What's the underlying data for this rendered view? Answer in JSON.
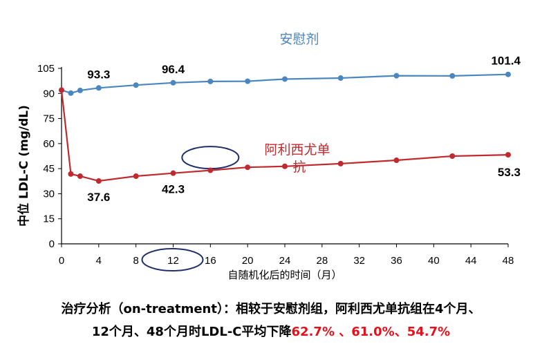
{
  "chart_data": {
    "type": "line",
    "title": "",
    "xlabel": "自随机化后的时间（月）",
    "ylabel": "中位 LDL-C (mg/dL)",
    "xlim": [
      0,
      48
    ],
    "ylim": [
      0,
      105
    ],
    "x_ticks": [
      0,
      4,
      8,
      12,
      16,
      20,
      24,
      28,
      32,
      36,
      40,
      44,
      48
    ],
    "y_ticks": [
      0,
      15,
      30,
      45,
      60,
      75,
      90,
      105
    ],
    "grid": false,
    "series": [
      {
        "name": "安慰剂",
        "color": "#4a86c0",
        "x": [
          0,
          1,
          2,
          4,
          8,
          12,
          16,
          20,
          24,
          30,
          36,
          42,
          48
        ],
        "y": [
          92.0,
          90.2,
          91.8,
          93.3,
          95.0,
          96.4,
          97.2,
          97.3,
          98.6,
          99.2,
          100.6,
          100.5,
          101.4
        ]
      },
      {
        "name": "阿利西尤单抗",
        "color": "#c0292e",
        "x": [
          0,
          1,
          2,
          4,
          8,
          12,
          16,
          20,
          24,
          30,
          36,
          42,
          48
        ],
        "y": [
          92.0,
          41.8,
          40.5,
          37.6,
          40.5,
          42.3,
          44.0,
          45.8,
          46.4,
          48.0,
          50.0,
          52.5,
          53.3
        ]
      }
    ],
    "data_labels": [
      {
        "series": 0,
        "x": 4,
        "text": "93.3"
      },
      {
        "series": 0,
        "x": 12,
        "text": "96.4"
      },
      {
        "series": 0,
        "x": 48,
        "text": "101.4"
      },
      {
        "series": 1,
        "x": 4,
        "text": "37.6"
      },
      {
        "series": 1,
        "x": 12,
        "text": "42.3"
      },
      {
        "series": 1,
        "x": 48,
        "text": "53.3"
      }
    ],
    "highlight_ellipse_color": "#1f2f6b"
  },
  "caption": {
    "line1": "治疗分析（on-treatment）：相较于安慰剂组，阿利西尤单抗组在4个月、",
    "line2_prefix": "12个月、48个月时LDL-C平均下降",
    "line2_highlight": "62.7% 、61.0%、54.7%",
    "highlight_color": "#e5101a"
  }
}
